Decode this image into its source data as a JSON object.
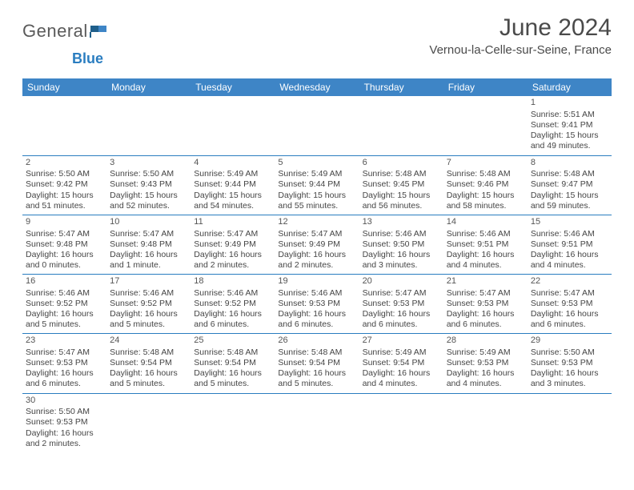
{
  "logo": {
    "main": "General",
    "sub": "Blue"
  },
  "title": "June 2024",
  "location": "Vernou-la-Celle-sur-Seine, France",
  "colors": {
    "header_bg": "#3e85c6",
    "header_text": "#ffffff",
    "border": "#2a7dc0",
    "body_text": "#454545",
    "logo_gray": "#5a5a5a",
    "logo_blue": "#2a7dc0"
  },
  "weekdays": [
    "Sunday",
    "Monday",
    "Tuesday",
    "Wednesday",
    "Thursday",
    "Friday",
    "Saturday"
  ],
  "weeks": [
    [
      null,
      null,
      null,
      null,
      null,
      null,
      {
        "d": "1",
        "sr": "Sunrise: 5:51 AM",
        "ss": "Sunset: 9:41 PM",
        "dl1": "Daylight: 15 hours",
        "dl2": "and 49 minutes."
      }
    ],
    [
      {
        "d": "2",
        "sr": "Sunrise: 5:50 AM",
        "ss": "Sunset: 9:42 PM",
        "dl1": "Daylight: 15 hours",
        "dl2": "and 51 minutes."
      },
      {
        "d": "3",
        "sr": "Sunrise: 5:50 AM",
        "ss": "Sunset: 9:43 PM",
        "dl1": "Daylight: 15 hours",
        "dl2": "and 52 minutes."
      },
      {
        "d": "4",
        "sr": "Sunrise: 5:49 AM",
        "ss": "Sunset: 9:44 PM",
        "dl1": "Daylight: 15 hours",
        "dl2": "and 54 minutes."
      },
      {
        "d": "5",
        "sr": "Sunrise: 5:49 AM",
        "ss": "Sunset: 9:44 PM",
        "dl1": "Daylight: 15 hours",
        "dl2": "and 55 minutes."
      },
      {
        "d": "6",
        "sr": "Sunrise: 5:48 AM",
        "ss": "Sunset: 9:45 PM",
        "dl1": "Daylight: 15 hours",
        "dl2": "and 56 minutes."
      },
      {
        "d": "7",
        "sr": "Sunrise: 5:48 AM",
        "ss": "Sunset: 9:46 PM",
        "dl1": "Daylight: 15 hours",
        "dl2": "and 58 minutes."
      },
      {
        "d": "8",
        "sr": "Sunrise: 5:48 AM",
        "ss": "Sunset: 9:47 PM",
        "dl1": "Daylight: 15 hours",
        "dl2": "and 59 minutes."
      }
    ],
    [
      {
        "d": "9",
        "sr": "Sunrise: 5:47 AM",
        "ss": "Sunset: 9:48 PM",
        "dl1": "Daylight: 16 hours",
        "dl2": "and 0 minutes."
      },
      {
        "d": "10",
        "sr": "Sunrise: 5:47 AM",
        "ss": "Sunset: 9:48 PM",
        "dl1": "Daylight: 16 hours",
        "dl2": "and 1 minute."
      },
      {
        "d": "11",
        "sr": "Sunrise: 5:47 AM",
        "ss": "Sunset: 9:49 PM",
        "dl1": "Daylight: 16 hours",
        "dl2": "and 2 minutes."
      },
      {
        "d": "12",
        "sr": "Sunrise: 5:47 AM",
        "ss": "Sunset: 9:49 PM",
        "dl1": "Daylight: 16 hours",
        "dl2": "and 2 minutes."
      },
      {
        "d": "13",
        "sr": "Sunrise: 5:46 AM",
        "ss": "Sunset: 9:50 PM",
        "dl1": "Daylight: 16 hours",
        "dl2": "and 3 minutes."
      },
      {
        "d": "14",
        "sr": "Sunrise: 5:46 AM",
        "ss": "Sunset: 9:51 PM",
        "dl1": "Daylight: 16 hours",
        "dl2": "and 4 minutes."
      },
      {
        "d": "15",
        "sr": "Sunrise: 5:46 AM",
        "ss": "Sunset: 9:51 PM",
        "dl1": "Daylight: 16 hours",
        "dl2": "and 4 minutes."
      }
    ],
    [
      {
        "d": "16",
        "sr": "Sunrise: 5:46 AM",
        "ss": "Sunset: 9:52 PM",
        "dl1": "Daylight: 16 hours",
        "dl2": "and 5 minutes."
      },
      {
        "d": "17",
        "sr": "Sunrise: 5:46 AM",
        "ss": "Sunset: 9:52 PM",
        "dl1": "Daylight: 16 hours",
        "dl2": "and 5 minutes."
      },
      {
        "d": "18",
        "sr": "Sunrise: 5:46 AM",
        "ss": "Sunset: 9:52 PM",
        "dl1": "Daylight: 16 hours",
        "dl2": "and 6 minutes."
      },
      {
        "d": "19",
        "sr": "Sunrise: 5:46 AM",
        "ss": "Sunset: 9:53 PM",
        "dl1": "Daylight: 16 hours",
        "dl2": "and 6 minutes."
      },
      {
        "d": "20",
        "sr": "Sunrise: 5:47 AM",
        "ss": "Sunset: 9:53 PM",
        "dl1": "Daylight: 16 hours",
        "dl2": "and 6 minutes."
      },
      {
        "d": "21",
        "sr": "Sunrise: 5:47 AM",
        "ss": "Sunset: 9:53 PM",
        "dl1": "Daylight: 16 hours",
        "dl2": "and 6 minutes."
      },
      {
        "d": "22",
        "sr": "Sunrise: 5:47 AM",
        "ss": "Sunset: 9:53 PM",
        "dl1": "Daylight: 16 hours",
        "dl2": "and 6 minutes."
      }
    ],
    [
      {
        "d": "23",
        "sr": "Sunrise: 5:47 AM",
        "ss": "Sunset: 9:53 PM",
        "dl1": "Daylight: 16 hours",
        "dl2": "and 6 minutes."
      },
      {
        "d": "24",
        "sr": "Sunrise: 5:48 AM",
        "ss": "Sunset: 9:54 PM",
        "dl1": "Daylight: 16 hours",
        "dl2": "and 5 minutes."
      },
      {
        "d": "25",
        "sr": "Sunrise: 5:48 AM",
        "ss": "Sunset: 9:54 PM",
        "dl1": "Daylight: 16 hours",
        "dl2": "and 5 minutes."
      },
      {
        "d": "26",
        "sr": "Sunrise: 5:48 AM",
        "ss": "Sunset: 9:54 PM",
        "dl1": "Daylight: 16 hours",
        "dl2": "and 5 minutes."
      },
      {
        "d": "27",
        "sr": "Sunrise: 5:49 AM",
        "ss": "Sunset: 9:54 PM",
        "dl1": "Daylight: 16 hours",
        "dl2": "and 4 minutes."
      },
      {
        "d": "28",
        "sr": "Sunrise: 5:49 AM",
        "ss": "Sunset: 9:53 PM",
        "dl1": "Daylight: 16 hours",
        "dl2": "and 4 minutes."
      },
      {
        "d": "29",
        "sr": "Sunrise: 5:50 AM",
        "ss": "Sunset: 9:53 PM",
        "dl1": "Daylight: 16 hours",
        "dl2": "and 3 minutes."
      }
    ],
    [
      {
        "d": "30",
        "sr": "Sunrise: 5:50 AM",
        "ss": "Sunset: 9:53 PM",
        "dl1": "Daylight: 16 hours",
        "dl2": "and 2 minutes."
      },
      null,
      null,
      null,
      null,
      null,
      null
    ]
  ]
}
